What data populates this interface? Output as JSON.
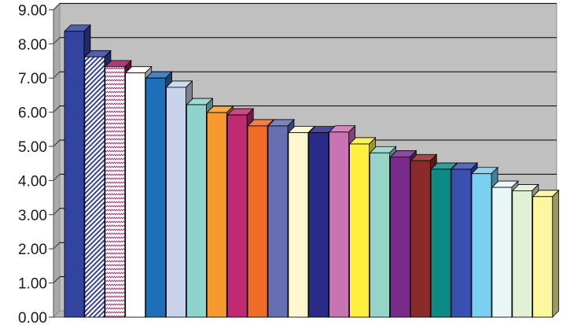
{
  "chart_data": {
    "type": "bar",
    "title": "",
    "xlabel": "",
    "ylabel": "",
    "ylim": [
      0,
      9
    ],
    "yticks": [
      "0.00",
      "1.00",
      "2.00",
      "3.00",
      "4.00",
      "5.00",
      "6.00",
      "7.00",
      "8.00",
      "9.00"
    ],
    "grid": true,
    "legend": "none",
    "three_d": true,
    "colors": {
      "plot_background": "#c0c0c0",
      "gridline": "#000000",
      "axis": "#808080"
    },
    "series": [
      {
        "values": [
          8.37,
          7.62,
          7.33,
          7.15,
          7.0,
          6.73,
          6.22,
          5.99,
          5.92,
          5.6,
          5.6,
          5.4,
          5.4,
          5.42,
          5.07,
          4.81,
          4.69,
          4.58,
          4.33,
          4.33,
          4.2,
          3.8,
          3.7,
          3.53
        ]
      }
    ],
    "bar_fills": [
      {
        "color": "#3344a0",
        "pattern": "solid"
      },
      {
        "color": "#3344a0",
        "pattern": "diagonal"
      },
      {
        "color": "#9a1a60",
        "pattern": "zigzag"
      },
      {
        "color": "#ffffff",
        "pattern": "solid"
      },
      {
        "color": "#1f6fb8",
        "pattern": "solid"
      },
      {
        "color": "#c8d2ea",
        "pattern": "solid"
      },
      {
        "color": "#8fd4cc",
        "pattern": "solid"
      },
      {
        "color": "#f79a2e",
        "pattern": "solid"
      },
      {
        "color": "#c02a70",
        "pattern": "solid"
      },
      {
        "color": "#f06a28",
        "pattern": "solid"
      },
      {
        "color": "#6470b0",
        "pattern": "solid"
      },
      {
        "color": "#fff7d0",
        "pattern": "solid"
      },
      {
        "color": "#2a2a88",
        "pattern": "solid"
      },
      {
        "color": "#c873b4",
        "pattern": "solid"
      },
      {
        "color": "#fff040",
        "pattern": "solid"
      },
      {
        "color": "#96d4c8",
        "pattern": "solid"
      },
      {
        "color": "#7a2a8a",
        "pattern": "solid"
      },
      {
        "color": "#8a2a2a",
        "pattern": "solid"
      },
      {
        "color": "#0e8a84",
        "pattern": "solid"
      },
      {
        "color": "#3a50b0",
        "pattern": "solid"
      },
      {
        "color": "#7ad0f0",
        "pattern": "solid"
      },
      {
        "color": "#e8f6f6",
        "pattern": "solid"
      },
      {
        "color": "#e2f0d6",
        "pattern": "solid"
      },
      {
        "color": "#fff6a0",
        "pattern": "solid"
      }
    ]
  }
}
